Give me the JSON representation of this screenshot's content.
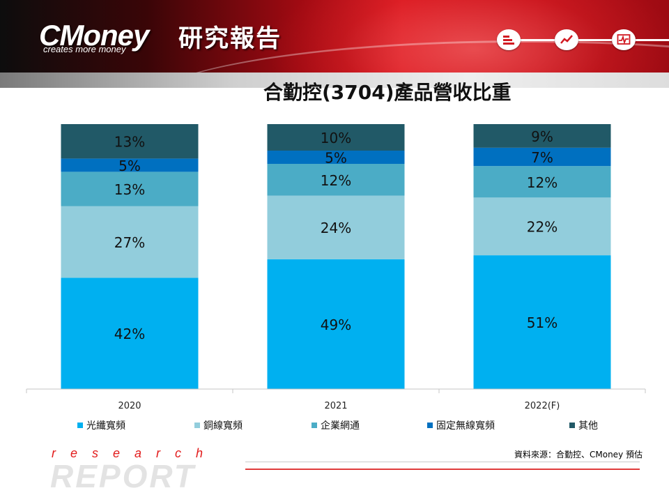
{
  "header": {
    "logo": "CMoney",
    "tagline": "creates more money",
    "report_title": "研究報告",
    "icons": [
      "bar-list-icon",
      "line-chart-icon",
      "pulse-chart-icon"
    ]
  },
  "footer": {
    "research": "research",
    "report": "REPORT",
    "source": "資料來源：合勤控、CMoney 預估"
  },
  "chart_data": {
    "type": "bar",
    "stacked": true,
    "title": "合勤控(3704)產品營收比重",
    "categories": [
      "2020",
      "2021",
      "2022(F)"
    ],
    "series": [
      {
        "name": "光纖寬頻",
        "values": [
          42,
          49,
          51
        ],
        "color": "#00B0F0",
        "label_color": "#111111"
      },
      {
        "name": "銅線寬頻",
        "values": [
          27,
          24,
          22
        ],
        "color": "#92CDDC",
        "label_color": "#111111"
      },
      {
        "name": "企業網通",
        "values": [
          13,
          12,
          12
        ],
        "color": "#4BACC6",
        "label_color": "#111111"
      },
      {
        "name": "固定無線寬頻",
        "values": [
          5,
          5,
          7
        ],
        "color": "#0070C0",
        "label_color": "#111111"
      },
      {
        "name": "其他",
        "values": [
          13,
          10,
          9
        ],
        "color": "#215967",
        "label_color": "#111111"
      }
    ],
    "value_format": "{v}%",
    "legend_position": "bottom",
    "grid": false
  }
}
